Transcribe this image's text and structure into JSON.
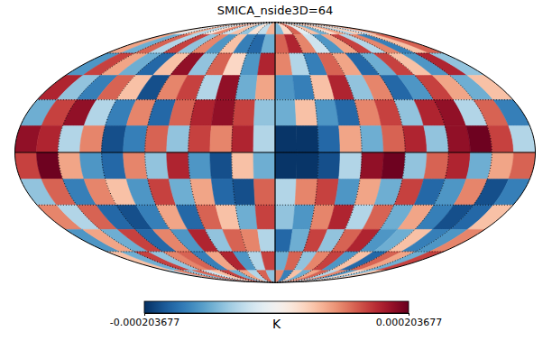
{
  "chart_data": {
    "type": "heatmap",
    "title": "SMICA_nside3D=64",
    "xlim": [
      180,
      -180
    ],
    "ylim": [
      90,
      -90
    ],
    "cells": [
      [
        5e-05,
        -3e-05,
        8e-05,
        -6e-05,
        2e-05,
        0.0001,
        -4e-05,
        6e-05,
        -8e-05,
        3e-05,
        -5e-05,
        7e-05,
        -9e-05,
        4e-05,
        0.00012,
        -2e-05,
        6e-05,
        -0.0001,
        3e-05,
        8e-05,
        -6e-05,
        5e-05,
        -4e-05,
        9e-05
      ],
      [
        8e-05,
        -0.0001,
        0.00012,
        -6e-05,
        0.00014,
        -8e-05,
        0.0001,
        -0.00012,
        6e-05,
        -0.00014,
        -0.00016,
        -0.0001,
        0.00012,
        0.00016,
        0.0001,
        -4e-05,
        -0.00012,
        8e-05,
        0.00014,
        -6e-05,
        0.0001,
        -0.00014,
        6e-05,
        0.00012
      ],
      [
        -0.00012,
        0.00014,
        8e-05,
        -0.0001,
        -0.00016,
        6e-05,
        0.00018,
        -8e-05,
        0.00012,
        4e-05,
        -0.00012,
        0.00016,
        0.0001,
        -6e-05,
        -0.00014,
        0.00012,
        8e-05,
        -0.00016,
        -0.0001,
        0.00014,
        6e-05,
        -0.00012,
        0.00016,
        -8e-05
      ],
      [
        0.00016,
        -8e-05,
        -0.00014,
        0.00012,
        6e-05,
        -0.00018,
        0.0001,
        0.00014,
        -6e-05,
        0.00018,
        -0.0001,
        8e-05,
        -0.00012,
        -0.00014,
        6e-05,
        0.00016,
        -8e-05,
        0.0001,
        -0.00016,
        -0.00012,
        0.00014,
        8e-05,
        -0.0001,
        6e-05
      ],
      [
        -0.0001,
        0.00014,
        0.00018,
        -6e-05,
        -0.00014,
        0.0001,
        -0.00016,
        0.00012,
        0.00016,
        0.00018,
        0.00014,
        -8e-05,
        -0.0001,
        6e-05,
        -0.00012,
        -0.00016,
        0.0001,
        0.00014,
        -8e-05,
        0.00016,
        0.00018,
        -6e-05,
        0.00012,
        -0.00014
      ],
      [
        0.00018,
        0.00016,
        -6e-05,
        0.0001,
        -0.00018,
        -0.00014,
        0.00012,
        -8e-05,
        0.00014,
        0.0001,
        0.00016,
        -6e-05,
        -0.0002,
        -0.0002,
        -0.00016,
        8e-05,
        -0.0001,
        0.00012,
        0.00016,
        -8e-05,
        0.00018,
        0.0002,
        0.00014,
        -6e-05
      ],
      [
        0.00014,
        0.0002,
        8e-05,
        -0.00012,
        -0.00016,
        0.0001,
        -8e-05,
        0.00016,
        -0.00012,
        -0.00018,
        6e-05,
        -0.0001,
        -0.0002,
        -0.0002,
        -0.00018,
        -6e-05,
        0.00018,
        0.0002,
        -8e-05,
        0.00012,
        0.00016,
        -0.0001,
        8e-05,
        0.00012
      ],
      [
        -8e-05,
        0.00012,
        -0.00014,
        0.0001,
        6e-05,
        -0.00012,
        0.00014,
        -0.0001,
        8e-05,
        -0.00016,
        -0.00018,
        0.00012,
        -6e-05,
        0.0001,
        0.00014,
        -0.00012,
        8e-05,
        -0.0001,
        0.00014,
        -0.00016,
        -0.00012,
        0.0001,
        -0.00018,
        -0.00014
      ],
      [
        0.0001,
        -6e-05,
        0.00012,
        -0.00016,
        -0.00018,
        -0.00014,
        8e-05,
        -0.00016,
        0.00012,
        6e-05,
        -0.0001,
        0.00014,
        -8e-05,
        -0.00012,
        0.0001,
        0.00016,
        -6e-05,
        0.00012,
        -0.0001,
        8e-05,
        -0.00014,
        -0.00018,
        -0.00016,
        6e-05
      ],
      [
        -0.00012,
        8e-05,
        -0.0001,
        0.00014,
        -0.00016,
        0.0001,
        -0.00012,
        0.00016,
        -8e-05,
        0.00012,
        0.0001,
        -6e-05,
        -0.00016,
        -0.0001,
        0.00014,
        -8e-05,
        0.00012,
        0.00016,
        -0.00012,
        -0.0001,
        6e-05,
        -0.00014,
        -0.00012,
        0.0001
      ],
      [
        6e-05,
        -0.0001,
        0.00014,
        -8e-05,
        0.0001,
        0.00012,
        -0.00014,
        8e-05,
        0.00016,
        -0.00012,
        -6e-05,
        0.00014,
        -0.0001,
        0.00012,
        -8e-05,
        0.0001,
        0.00014,
        -0.00012,
        6e-05,
        -0.00016,
        0.00012,
        8e-05,
        -0.0001,
        0.00014
      ],
      [
        -6e-05,
        0.0001,
        -8e-05,
        0.00012,
        -4e-05,
        6e-05,
        0.00014,
        -0.0001,
        8e-05,
        -6e-05,
        0.00012,
        -8e-05,
        0.0001,
        -0.00014,
        6e-05,
        -0.0001,
        8e-05,
        0.00012,
        -6e-05,
        0.0001,
        -0.00012,
        4e-05,
        -8e-05,
        6e-05
      ]
    ],
    "colorbar": {
      "label": "K",
      "range": [
        -0.000203677,
        0.000203677
      ],
      "ticks": [
        -0.000203677,
        0.000203677
      ]
    },
    "grid": true,
    "tick_labels": false
  }
}
